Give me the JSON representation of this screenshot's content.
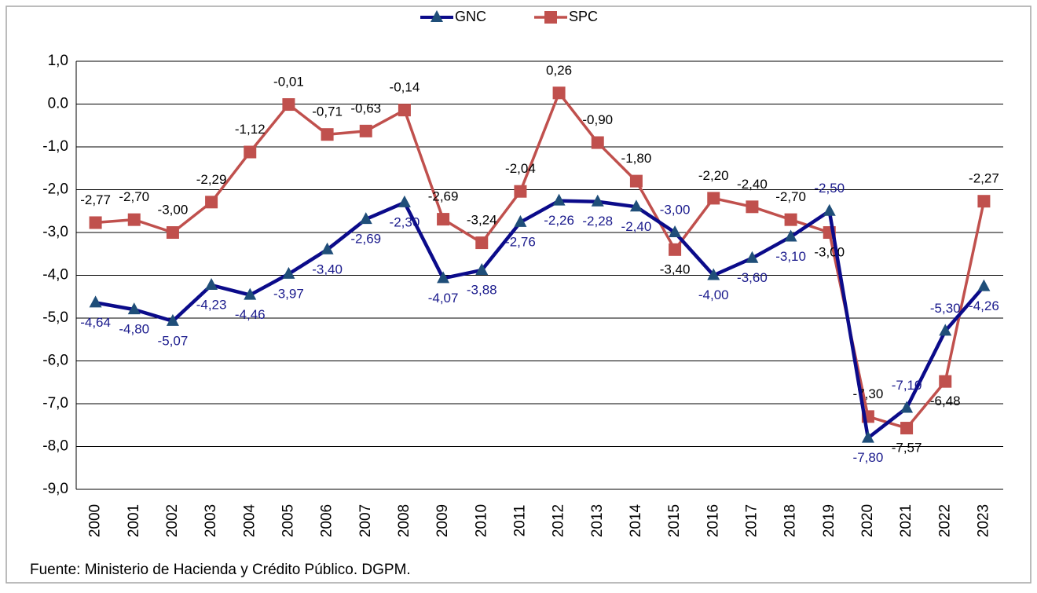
{
  "chart_data": {
    "type": "line",
    "categories": [
      "2000",
      "2001",
      "2002",
      "2003",
      "2004",
      "2005",
      "2006",
      "2007",
      "2008",
      "2009",
      "2010",
      "2011",
      "2012",
      "2013",
      "2014",
      "2015",
      "2016",
      "2017",
      "2018",
      "2019",
      "2020",
      "2021",
      "2022",
      "2023"
    ],
    "series": [
      {
        "name": "GNC",
        "color": "#0b0b8a",
        "marker_color": "#1f4e79",
        "marker": "triangle",
        "values": [
          -4.64,
          -4.8,
          -5.07,
          -4.23,
          -4.46,
          -3.97,
          -3.4,
          -2.69,
          -2.3,
          -4.07,
          -3.88,
          -2.76,
          -2.26,
          -2.28,
          -2.4,
          -3.0,
          -4.0,
          -3.6,
          -3.1,
          -2.5,
          -7.8,
          -7.1,
          -5.3,
          -4.26
        ],
        "value_labels": [
          "-4,64",
          "-4,80",
          "-5,07",
          "-4,23",
          "-4,46",
          "-3,97",
          "-3,40",
          "-2,69",
          "-2,30",
          "-4,07",
          "-3,88",
          "-2,76",
          "-2,26",
          "-2,28",
          "-2,40",
          "-3,00",
          "-4,00",
          "-3,60",
          "-3,10",
          "-2,50",
          "-7,80",
          "-7,10",
          "-5,30",
          "-4,26"
        ]
      },
      {
        "name": "SPC",
        "color": "#c0504d",
        "marker_color": "#c0504d",
        "marker": "square",
        "values": [
          -2.77,
          -2.7,
          -3.0,
          -2.29,
          -1.12,
          -0.01,
          -0.71,
          -0.63,
          -0.14,
          -2.69,
          -3.24,
          -2.04,
          0.26,
          -0.9,
          -1.8,
          -3.4,
          -2.2,
          -2.4,
          -2.7,
          -3.0,
          -7.3,
          -7.57,
          -6.48,
          -2.27
        ],
        "value_labels": [
          "-2,77",
          "-2,70",
          "-3,00",
          "-2,29",
          "-1,12",
          "-0,01",
          "-0,71",
          "-0,63",
          "-0,14",
          "-2,69",
          "-3,24",
          "-2,04",
          "0,26",
          "-0,90",
          "-1,80",
          "-3,40",
          "-2,20",
          "-2,40",
          "-2,70",
          "-3,00",
          "-7,30",
          "-7,57",
          "-6,48",
          "-2,27"
        ]
      }
    ],
    "ylim": [
      -9,
      1
    ],
    "yticks": [
      {
        "value": 1,
        "label": "1,0"
      },
      {
        "value": 0,
        "label": "0.0"
      },
      {
        "value": -1,
        "label": "-1,0"
      },
      {
        "value": -2,
        "label": "-2,0"
      },
      {
        "value": -3,
        "label": "-3,0"
      },
      {
        "value": -4,
        "label": "-4,0"
      },
      {
        "value": -5,
        "label": "-5,0"
      },
      {
        "value": -6,
        "label": "-6,0"
      },
      {
        "value": -7,
        "label": "-7,0"
      },
      {
        "value": -8,
        "label": "-8,0"
      },
      {
        "value": -9,
        "label": "-9,0"
      }
    ],
    "grid": true,
    "legend": "top",
    "source": "Fuente:  Ministerio de Hacienda y Crédito Público. DGPM."
  }
}
